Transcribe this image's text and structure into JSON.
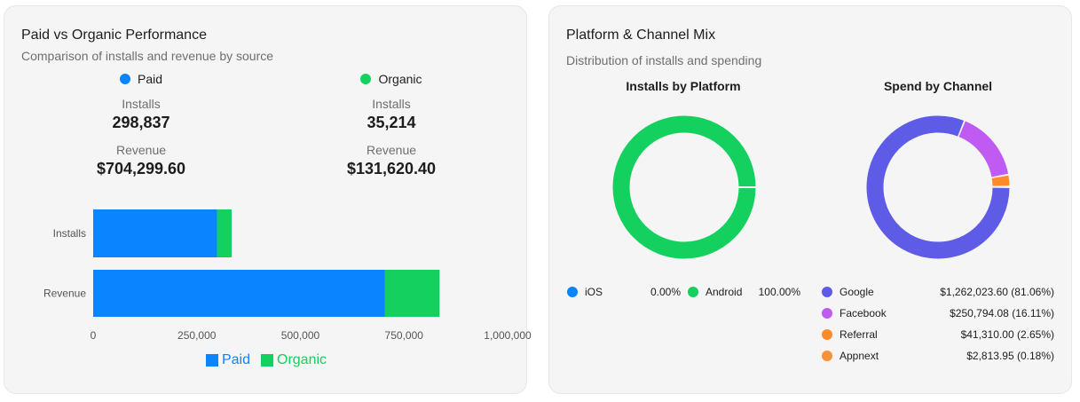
{
  "left_card": {
    "title": "Paid vs Organic Performance",
    "subtitle": "Comparison of installs and revenue by source",
    "paid": {
      "name": "Paid",
      "installs_label": "Installs",
      "installs": "298,837",
      "revenue_label": "Revenue",
      "revenue": "$704,299.60",
      "color": "#0a84ff"
    },
    "organic": {
      "name": "Organic",
      "installs_label": "Installs",
      "installs": "35,214",
      "revenue_label": "Revenue",
      "revenue": "$131,620.40",
      "color": "#13d05f"
    }
  },
  "right_card": {
    "title": "Platform & Channel Mix",
    "subtitle": "Distribution of installs and spending"
  },
  "chart_data": [
    {
      "type": "bar",
      "orientation": "horizontal",
      "stacked": true,
      "categories": [
        "Installs",
        "Revenue"
      ],
      "series": [
        {
          "name": "Paid",
          "values": [
            298837,
            704299.6
          ],
          "color": "#0a84ff"
        },
        {
          "name": "Organic",
          "values": [
            35214,
            131620.4
          ],
          "color": "#13d05f"
        }
      ],
      "xlim": [
        0,
        1000000
      ],
      "xticks": [
        "0",
        "250,000",
        "500,000",
        "750,000",
        "1,000,000"
      ],
      "legend_position": "bottom"
    },
    {
      "type": "pie",
      "donut": true,
      "title": "Installs by Platform",
      "slices": [
        {
          "label": "iOS",
          "percent": 0.0,
          "display": "0.00%",
          "color": "#0a84ff"
        },
        {
          "label": "Android",
          "percent": 100.0,
          "display": "100.00%",
          "color": "#13d05f"
        }
      ],
      "legend_position": "bottom"
    },
    {
      "type": "pie",
      "donut": true,
      "title": "Spend by Channel",
      "slices": [
        {
          "label": "Google",
          "value": 1262023.6,
          "percent": 81.06,
          "display": "$1,262,023.60 (81.06%)",
          "color": "#5e5ce6"
        },
        {
          "label": "Facebook",
          "value": 250794.08,
          "percent": 16.11,
          "display": "$250,794.08 (16.11%)",
          "color": "#bf5af2"
        },
        {
          "label": "Referral",
          "value": 41310.0,
          "percent": 2.65,
          "display": "$41,310.00 (2.65%)",
          "color": "#ff8a2a"
        },
        {
          "label": "Appnext",
          "value": 2813.95,
          "percent": 0.18,
          "display": "$2,813.95 (0.18%)",
          "color": "#f7913c"
        }
      ],
      "legend_position": "bottom"
    }
  ]
}
